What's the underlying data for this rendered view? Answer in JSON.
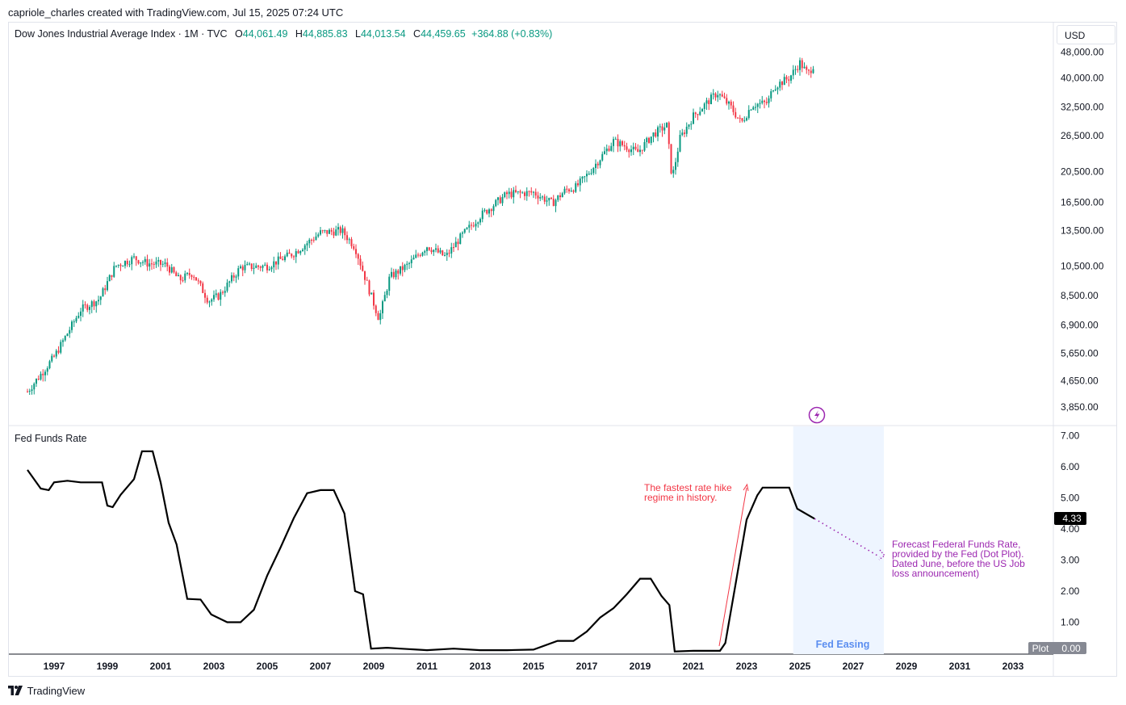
{
  "header": {
    "text": "capriole_charles created with TradingView.com, Jul 15, 2025 07:24 UTC"
  },
  "legend": {
    "symbol": "Dow Jones Industrial Average Index · 1M · TVC",
    "open_label": "O",
    "open": "44,061.49",
    "high_label": "H",
    "high": "44,885.83",
    "low_label": "L",
    "low": "44,013.54",
    "close_label": "C",
    "close": "44,459.65",
    "change": "+364.88 (+0.83%)"
  },
  "currency": "USD",
  "indicator": {
    "name": "Fed Funds Rate"
  },
  "footer": {
    "brand": "TradingView"
  },
  "colors": {
    "up": "#089981",
    "down": "#f23645",
    "rate_line": "#000000",
    "easing_fill": "#eef5ff",
    "annotation_red": "#f23645",
    "annotation_purple": "#9c27b0"
  },
  "chart_data": [
    {
      "type": "candlestick",
      "title": "Dow Jones Industrial Average Index · 1M · TVC",
      "scale": "log",
      "price_ticks": [
        "48,000.00",
        "40,000.00",
        "32,500.00",
        "26,500.00",
        "20,500.00",
        "16,500.00",
        "13,500.00",
        "10,500.00",
        "8,500.00",
        "6,900.00",
        "5,650.00",
        "4,650.00",
        "3,850.00"
      ],
      "ohlc_last": {
        "open": 44061.49,
        "high": 44885.83,
        "low": 44013.54,
        "close": 44459.65
      },
      "series_approx": {
        "x": [
          1996.0,
          1997.0,
          1998.0,
          1998.7,
          1999.3,
          2000.0,
          2000.5,
          2001.2,
          2001.7,
          2002.2,
          2002.8,
          2003.2,
          2004.0,
          2005.0,
          2006.0,
          2007.0,
          2007.8,
          2008.3,
          2008.8,
          2009.2,
          2009.6,
          2010.3,
          2011.0,
          2011.7,
          2012.3,
          2013.0,
          2014.0,
          2015.0,
          2015.7,
          2016.2,
          2016.6,
          2017.0,
          2018.0,
          2018.5,
          2018.9,
          2019.5,
          2020.0,
          2020.2,
          2020.5,
          2021.0,
          2021.9,
          2022.4,
          2022.8,
          2023.2,
          2023.8,
          2024.0,
          2024.6,
          2025.0,
          2025.3,
          2025.55
        ],
        "y": [
          4300,
          5500,
          7700,
          8300,
          10500,
          11100,
          10700,
          10600,
          9500,
          10000,
          8200,
          8500,
          10400,
          10500,
          11500,
          13300,
          13500,
          12000,
          9000,
          7200,
          9700,
          10600,
          12100,
          11200,
          13000,
          15000,
          17500,
          17700,
          16400,
          18000,
          18400,
          20000,
          25500,
          24500,
          23500,
          26800,
          28500,
          19500,
          26000,
          30500,
          36000,
          32500,
          29000,
          33000,
          33500,
          37500,
          40000,
          44500,
          41000,
          44459.65
        ]
      }
    },
    {
      "type": "line",
      "title": "Fed Funds Rate",
      "ylim": [
        0,
        7
      ],
      "y_ticks": [
        "7.00",
        "6.00",
        "5.00",
        "4.00",
        "3.00",
        "2.00",
        "1.00",
        "0.00"
      ],
      "x_ticks": [
        "1997",
        "1999",
        "2001",
        "2003",
        "2005",
        "2007",
        "2009",
        "2011",
        "2013",
        "2015",
        "2017",
        "2019",
        "2021",
        "2023",
        "2025",
        "2027",
        "2029",
        "2031",
        "2033"
      ],
      "series": [
        {
          "x": [
            1996.0,
            1996.5,
            1996.8,
            1997.0,
            1997.5,
            1998.0,
            1998.5,
            1998.8,
            1999.0,
            1999.2,
            1999.5,
            2000.0,
            2000.3,
            2000.7,
            2001.0,
            2001.3,
            2001.6,
            2002.0,
            2002.5,
            2002.9,
            2003.5,
            2004.0,
            2004.5,
            2005.0,
            2005.5,
            2006.0,
            2006.5,
            2007.0,
            2007.5,
            2007.9,
            2008.3,
            2008.6,
            2008.9,
            2009.5,
            2010.0,
            2011.0,
            2012.0,
            2013.0,
            2014.0,
            2015.0,
            2015.9,
            2016.5,
            2017.0,
            2017.5,
            2018.0,
            2018.5,
            2019.0,
            2019.4,
            2019.8,
            2020.1,
            2020.3,
            2021.0,
            2022.0,
            2022.2,
            2022.6,
            2023.0,
            2023.4,
            2023.6,
            2024.0,
            2024.6,
            2024.9,
            2025.55
          ],
          "y": [
            5.9,
            5.3,
            5.25,
            5.5,
            5.55,
            5.5,
            5.5,
            5.5,
            4.75,
            4.7,
            5.1,
            5.6,
            6.5,
            6.5,
            5.5,
            4.2,
            3.5,
            1.75,
            1.73,
            1.25,
            1.0,
            1.0,
            1.4,
            2.5,
            3.4,
            4.35,
            5.15,
            5.25,
            5.25,
            4.5,
            2.0,
            1.9,
            0.15,
            0.18,
            0.15,
            0.1,
            0.15,
            0.1,
            0.1,
            0.12,
            0.4,
            0.4,
            0.7,
            1.15,
            1.45,
            1.9,
            2.4,
            2.4,
            1.85,
            1.55,
            0.06,
            0.08,
            0.08,
            0.33,
            2.3,
            4.3,
            5.08,
            5.33,
            5.33,
            5.33,
            4.65,
            4.33
          ]
        }
      ],
      "forecast": {
        "x": [
          2025.55,
          2028.0
        ],
        "y": [
          4.33,
          3.1
        ]
      },
      "current_value": "4.33",
      "plot_label": "Plot",
      "plot_value": "0.00",
      "shaded_region": {
        "label": "Fed Easing",
        "x_start": 2024.75,
        "x_end": 2028.15
      },
      "annotations": [
        {
          "name": "rate-hike-note",
          "text_line1": "The fastest rate hike",
          "text_line2": "regime in history."
        },
        {
          "name": "forecast-note",
          "text_line1": "Forecast Federal Funds Rate,",
          "text_line2": "provided by the Fed (Dot Plot).",
          "text_line3": "Dated June, before the US Job",
          "text_line4": "loss announcement)"
        }
      ]
    }
  ]
}
